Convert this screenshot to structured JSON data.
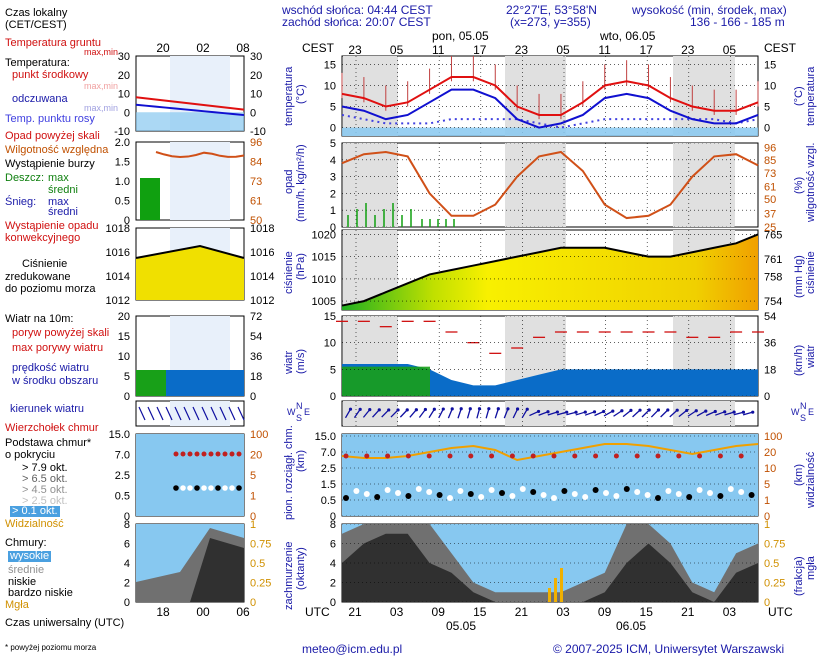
{
  "header": {
    "sunrise": "wschód słońca: 04:44 CEST",
    "sunset": "zachód słońca: 20:07 CEST",
    "coords": "22°27'E, 53°58'N",
    "grid": "(x=273, y=355)",
    "elev_title": "wysokość (min, środek, max)",
    "elev_values": "136 - 166 - 185 m",
    "cest_left": "CEST",
    "cest_right": "CEST",
    "day1": "pon, 05.05",
    "day2": "wto, 06.05"
  },
  "left_legend": {
    "local_time": "Czas lokalny",
    "local_time_sub": "(CET/CEST)",
    "soil_temp": "Temperatura gruntu",
    "soil_sub": "max,min",
    "temp": "Temperatura:",
    "temp_mid": "punkt środkowy",
    "temp_maxmin": "max,min",
    "temp_felt": "odczuwana",
    "temp_felt_maxmin": "max,min",
    "dewpoint": "Temp. punktu rosy",
    "precip_over": "Opad powyżej skali",
    "humidity": "Wilgotność względna",
    "storm": "Wystąpienie burzy",
    "rain": "Deszcz:",
    "rain_max": "max",
    "rain_avg": "średni",
    "snow": "Śnieg:",
    "snow_max": "max",
    "snow_avg": "średni",
    "conv1": "Wystąpienie opadu",
    "conv2": "konwekcyjnego",
    "pressure1": "Ciśnienie",
    "pressure2": "zredukowane",
    "pressure3": "do poziomu morza",
    "wind10": "Wiatr na 10m:",
    "gust_over": "poryw powyżej skali",
    "gust_max": "max porywy wiatru",
    "wind_speed": "prędkość wiatru",
    "wind_avg": "w środku obszaru",
    "wind_dir": "kierunek wiatru",
    "cloud_top": "Wierzchołek chmur",
    "cloud_base1": "Podstawa chmur*",
    "cloud_base2": "o pokryciu",
    "okt79": "> 7.9 okt.",
    "okt65": "> 6.5 okt.",
    "okt45": "> 4.5 okt.",
    "okt25": "> 2.5 okt.",
    "okt01": "> 0.1 okt.",
    "visibility": "Widzialność",
    "clouds": "Chmury:",
    "high": "wysokie",
    "mid": "średnie",
    "low": "niskie",
    "vlow": "bardzo niskie",
    "fog": "Mgła",
    "utc_label": "Czas uniwersalny (UTC)",
    "footnote": "* powyżej poziomu morza"
  },
  "axis_titles": {
    "temp_l1": "temperatura",
    "temp_l2": "(°C)",
    "temp_r": "(°C)",
    "temp_r2": "temperatura",
    "precip_l1": "opad",
    "precip_l2": "(mm/h, kg/m²/h)",
    "hum_r1": "(%)",
    "hum_r2": "wilgotność wzgl.",
    "pres_l1": "ciśnienie",
    "pres_l2": "(hPa)",
    "pres_r1": "(mm Hg)",
    "pres_r2": "ciśnienie",
    "wind_l1": "wiatr",
    "wind_l2": "(m/s)",
    "wind_r1": "(km/h)",
    "wind_r2": "wiatr",
    "cb_l1": "pion. rozciągł. chm.",
    "cb_l2": "(km)",
    "vis_r1": "(km)",
    "vis_r2": "widzialność",
    "cl_l1": "zachmurzenie",
    "cl_l2": "(oktanty)",
    "fog_r1": "(frakcja)",
    "fog_r2": "mgła",
    "compass_n": "N",
    "compass_w": "W",
    "compass_e": "E",
    "compass_s": "S"
  },
  "footer": {
    "utc_left": "UTC",
    "utc_right": "UTC",
    "date1": "05.05",
    "date2": "06.05",
    "email": "meteo@icm.edu.pl",
    "copyright": "© 2007-2025 ICM, Uniwersytet Warszawski"
  },
  "colors": {
    "sky": "#87c8f0",
    "night": "#78b4e4",
    "temp_mid": "#e01010",
    "temp_felt": "#1010d0",
    "dewpoint": "#4040e0",
    "humidity": "#d05018",
    "pressure_fill": "#f0e000",
    "wind_fill": "#0a6cc8",
    "cloud_dark": "#303030",
    "cloud_mid": "#707070"
  },
  "chart_data": [
    {
      "type": "line",
      "name": "temperature",
      "x_hours_cest": [
        23,
        2,
        5,
        8,
        11,
        14,
        17,
        20,
        23,
        2,
        5,
        8,
        11,
        14,
        17,
        20,
        23,
        2,
        5,
        8
      ],
      "temp_mid": [
        8,
        7,
        5,
        6,
        9,
        12,
        12,
        10,
        5,
        3,
        3,
        6,
        10,
        11,
        10,
        7,
        5,
        4,
        4,
        6
      ],
      "temp_felt": [
        5,
        4,
        2,
        3,
        6,
        9,
        9,
        7,
        2,
        0,
        1,
        3,
        7,
        8,
        7,
        4,
        2,
        1,
        1,
        3
      ],
      "dewpoint": [
        3,
        2,
        1,
        1,
        1,
        2,
        2,
        2,
        2,
        1,
        0,
        1,
        2,
        2,
        2,
        2,
        2,
        2,
        1,
        2
      ],
      "ylim": [
        -10,
        30
      ],
      "yticks": [
        -10,
        -5,
        0,
        5,
        10,
        15,
        20,
        25,
        30
      ],
      "yticks_main": [
        0,
        5,
        10,
        15
      ]
    },
    {
      "type": "line",
      "name": "humidity",
      "values": [
        82,
        90,
        92,
        88,
        55,
        35,
        35,
        45,
        70,
        88,
        92,
        75,
        45,
        33,
        35,
        45,
        70,
        88,
        90,
        80
      ],
      "ylim": [
        25,
        100
      ],
      "yticks_left_mm": [
        0,
        0.5,
        1,
        1.5,
        2,
        2.5,
        3,
        3.5,
        4,
        4.5,
        5
      ],
      "yticks_right_pct": [
        25,
        37,
        50,
        61,
        73,
        85,
        96
      ]
    },
    {
      "type": "area",
      "name": "pressure",
      "values_hpa": [
        1004,
        1005,
        1007,
        1009,
        1011,
        1012,
        1013,
        1014,
        1015,
        1016,
        1017,
        1017,
        1017,
        1016,
        1015,
        1015,
        1016,
        1017,
        1018,
        1020
      ],
      "ylim": [
        1003,
        1021
      ],
      "yticks_hpa": [
        1005,
        1010,
        1015,
        1020
      ],
      "yticks_mmhg": [
        754,
        758,
        761,
        765
      ]
    },
    {
      "type": "area",
      "name": "wind",
      "speed_ms": [
        6,
        6,
        6,
        6,
        5,
        3,
        2,
        2,
        3,
        4,
        5,
        5,
        5,
        5,
        5,
        5,
        5,
        5,
        5,
        5
      ],
      "gust_ms": [
        14,
        14,
        13,
        14,
        14,
        12,
        10,
        8,
        9,
        11,
        12,
        12,
        12,
        12,
        12,
        12,
        11,
        11,
        12,
        12
      ],
      "ylim": [
        0,
        15
      ],
      "yticks_ms": [
        0,
        5,
        10,
        15
      ],
      "yticks_kmh": [
        0,
        18,
        36,
        54
      ]
    },
    {
      "type": "scatter",
      "name": "cloud_base_visibility",
      "visibility_km": [
        12,
        11,
        11,
        12,
        14,
        16,
        17,
        15,
        10,
        12,
        14,
        16,
        18,
        18,
        17,
        15,
        13,
        15,
        17,
        18
      ],
      "ylim": [
        0,
        15
      ],
      "yticks_km": [
        "0",
        "0.5",
        "1.5",
        "2.5",
        "7.0",
        "15.0"
      ],
      "yticks_vis": [
        0,
        1,
        5,
        10,
        20,
        100
      ]
    },
    {
      "type": "area",
      "name": "clouds",
      "total_okt": [
        7,
        8,
        8,
        8,
        8,
        5,
        2,
        1,
        1,
        1,
        1,
        2,
        3,
        8,
        8,
        6,
        2,
        1,
        5,
        6
      ],
      "low_okt": [
        4,
        6,
        7,
        7,
        4,
        3,
        1,
        0,
        0,
        0,
        0,
        0,
        1,
        4,
        6,
        4,
        1,
        0,
        3,
        4
      ],
      "ylim": [
        0,
        8
      ],
      "yticks_okt": [
        0,
        2,
        4,
        6,
        8
      ],
      "yticks_fog": [
        "0",
        "0.25",
        "0.5",
        "0.75",
        "1"
      ]
    }
  ],
  "time_axis": {
    "top_cest": [
      "23",
      "05",
      "11",
      "17",
      "23",
      "05",
      "11",
      "17",
      "23",
      "05"
    ],
    "bottom_utc": [
      "21",
      "03",
      "09",
      "15",
      "21",
      "03",
      "09",
      "15",
      "21",
      "03"
    ],
    "left_top": [
      "20",
      "02",
      "08"
    ],
    "left_bottom": [
      "18",
      "00",
      "06"
    ]
  }
}
